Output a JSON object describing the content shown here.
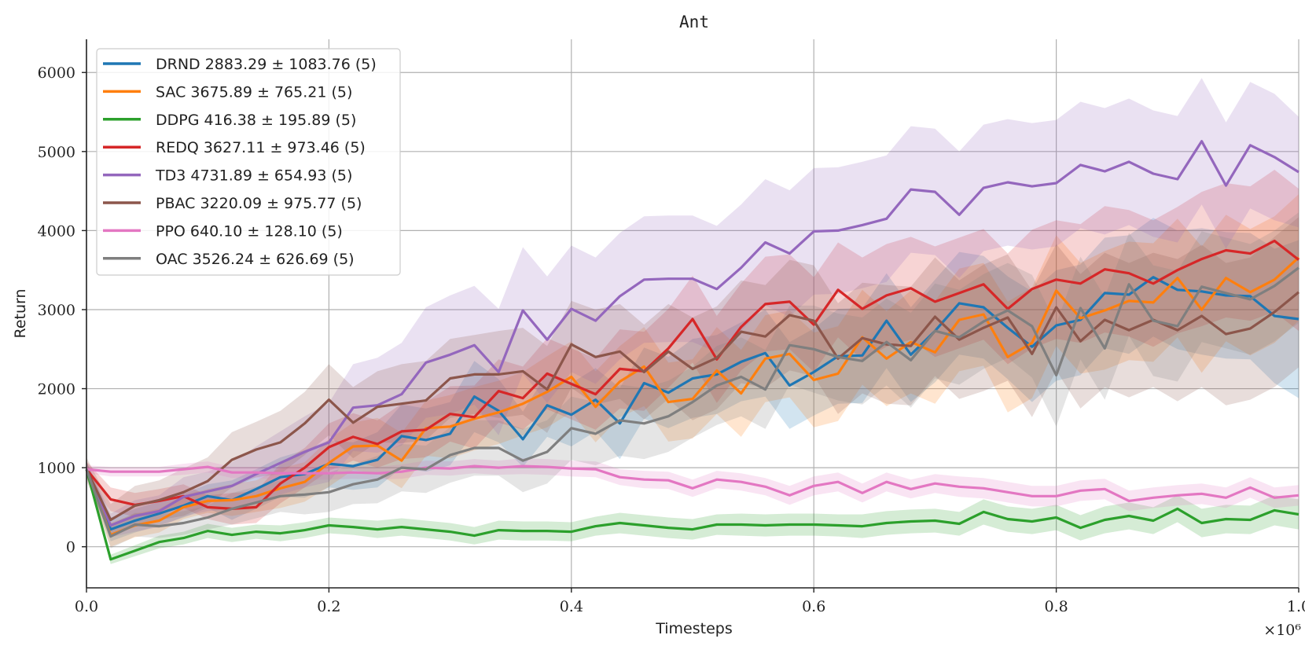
{
  "chart_data": {
    "type": "line",
    "title": "Ant",
    "xlabel": "Timesteps",
    "ylabel": "Return",
    "x_multiplier_label": "×10⁶",
    "xlim": [
      0,
      1.0
    ],
    "ylim": [
      -520,
      6420
    ],
    "xticks": [
      0.0,
      0.2,
      0.4,
      0.6,
      0.8,
      1.0
    ],
    "xtick_labels": [
      "0.0",
      "0.2",
      "0.4",
      "0.6",
      "0.8",
      "1.0"
    ],
    "yticks": [
      0,
      1000,
      2000,
      3000,
      4000,
      5000,
      6000
    ],
    "ytick_labels": [
      "0",
      "1000",
      "2000",
      "3000",
      "4000",
      "5000",
      "6000"
    ],
    "grid": true,
    "legend_position": "top-left",
    "x": [
      0.0,
      0.02,
      0.04,
      0.06,
      0.08,
      0.1,
      0.12,
      0.14,
      0.16,
      0.18,
      0.2,
      0.22,
      0.24,
      0.26,
      0.28,
      0.3,
      0.32,
      0.34,
      0.36,
      0.38,
      0.4,
      0.42,
      0.44,
      0.46,
      0.48,
      0.5,
      0.52,
      0.54,
      0.56,
      0.58,
      0.6,
      0.62,
      0.64,
      0.66,
      0.68,
      0.7,
      0.72,
      0.74,
      0.76,
      0.78,
      0.8,
      0.82,
      0.84,
      0.86,
      0.88,
      0.9,
      0.92,
      0.94,
      0.96,
      0.98,
      1.0
    ],
    "series": [
      {
        "name": "DRND",
        "legend": "DRND 2883.29 ± 1083.76 (5)",
        "color": "#1f77b4",
        "values": [
          980,
          220,
          330,
          420,
          520,
          640,
          590,
          730,
          880,
          920,
          1050,
          1020,
          1100,
          1400,
          1350,
          1430,
          1900,
          1720,
          1360,
          1790,
          1670,
          1860,
          1560,
          2070,
          1950,
          2130,
          2180,
          2340,
          2450,
          2040,
          2210,
          2410,
          2420,
          2860,
          2430,
          2730,
          3080,
          3030,
          2770,
          2530,
          2800,
          2870,
          3210,
          3190,
          3410,
          3250,
          3230,
          3180,
          3170,
          2920,
          2880
        ],
        "band": [
          100,
          150,
          150,
          150,
          150,
          150,
          250,
          250,
          250,
          300,
          300,
          300,
          350,
          400,
          400,
          400,
          450,
          400,
          350,
          400,
          400,
          400,
          450,
          450,
          450,
          500,
          500,
          500,
          550,
          550,
          550,
          600,
          600,
          600,
          600,
          650,
          650,
          650,
          650,
          700,
          700,
          700,
          700,
          750,
          750,
          750,
          800,
          800,
          800,
          850,
          1000
        ]
      },
      {
        "name": "SAC",
        "legend": "SAC 3675.89 ± 765.21 (5)",
        "color": "#ff7f0e",
        "values": [
          980,
          150,
          270,
          330,
          500,
          580,
          590,
          640,
          740,
          820,
          1060,
          1270,
          1280,
          1090,
          1500,
          1520,
          1620,
          1700,
          1810,
          1960,
          2150,
          1770,
          2090,
          2280,
          1830,
          1870,
          2230,
          1940,
          2380,
          2440,
          2110,
          2190,
          2650,
          2380,
          2590,
          2460,
          2870,
          2940,
          2400,
          2580,
          3240,
          2890,
          2990,
          3110,
          3090,
          3400,
          3000,
          3400,
          3220,
          3380,
          3660
        ],
        "band": [
          100,
          150,
          150,
          150,
          150,
          150,
          200,
          200,
          250,
          250,
          300,
          300,
          350,
          350,
          350,
          400,
          400,
          400,
          400,
          450,
          450,
          450,
          450,
          500,
          500,
          500,
          550,
          550,
          550,
          550,
          600,
          600,
          600,
          600,
          650,
          650,
          650,
          650,
          700,
          700,
          700,
          700,
          750,
          750,
          750,
          750,
          800,
          800,
          800,
          800,
          800
        ]
      },
      {
        "name": "DDPG",
        "legend": "DDPG 416.38 ± 195.89 (5)",
        "color": "#2ca02c",
        "values": [
          980,
          -160,
          -50,
          60,
          110,
          200,
          150,
          190,
          170,
          210,
          270,
          250,
          220,
          250,
          220,
          190,
          140,
          210,
          200,
          200,
          190,
          260,
          300,
          270,
          240,
          220,
          280,
          280,
          270,
          280,
          280,
          270,
          260,
          300,
          320,
          330,
          290,
          440,
          350,
          320,
          370,
          240,
          340,
          390,
          330,
          480,
          300,
          350,
          340,
          460,
          410
        ],
        "band": [
          50,
          60,
          70,
          80,
          80,
          90,
          90,
          90,
          100,
          100,
          100,
          100,
          110,
          110,
          110,
          110,
          110,
          120,
          120,
          120,
          120,
          120,
          130,
          130,
          130,
          130,
          130,
          140,
          140,
          140,
          140,
          140,
          150,
          150,
          150,
          150,
          150,
          160,
          160,
          160,
          160,
          160,
          170,
          170,
          170,
          170,
          180,
          180,
          180,
          190,
          190
        ]
      },
      {
        "name": "REDQ",
        "legend": "REDQ 3627.11 ± 973.46 (5)",
        "color": "#d62728",
        "values": [
          980,
          600,
          530,
          580,
          640,
          500,
          480,
          500,
          800,
          1000,
          1260,
          1390,
          1300,
          1460,
          1480,
          1680,
          1640,
          1970,
          1880,
          2190,
          2060,
          1930,
          2250,
          2220,
          2510,
          2880,
          2370,
          2780,
          3070,
          3100,
          2810,
          3250,
          3010,
          3180,
          3270,
          3100,
          3210,
          3320,
          3010,
          3260,
          3380,
          3330,
          3510,
          3460,
          3330,
          3500,
          3640,
          3750,
          3710,
          3870,
          3630
        ],
        "band": [
          100,
          150,
          150,
          150,
          150,
          150,
          200,
          200,
          250,
          250,
          300,
          300,
          300,
          350,
          350,
          350,
          400,
          400,
          400,
          450,
          450,
          450,
          500,
          500,
          500,
          550,
          550,
          550,
          600,
          600,
          600,
          600,
          650,
          650,
          650,
          700,
          700,
          700,
          700,
          750,
          750,
          750,
          800,
          800,
          800,
          800,
          850,
          850,
          850,
          900,
          900
        ]
      },
      {
        "name": "TD3",
        "legend": "TD3 4731.89 ± 654.93 (5)",
        "color": "#9467bd",
        "values": [
          980,
          270,
          390,
          450,
          630,
          700,
          770,
          920,
          1060,
          1200,
          1320,
          1760,
          1790,
          1930,
          2330,
          2430,
          2550,
          2210,
          2990,
          2620,
          3010,
          2860,
          3170,
          3380,
          3390,
          3390,
          3260,
          3530,
          3850,
          3710,
          3990,
          4000,
          4070,
          4150,
          4520,
          4490,
          4200,
          4540,
          4610,
          4560,
          4600,
          4830,
          4750,
          4870,
          4720,
          4650,
          5130,
          4570,
          5080,
          4930,
          4740
        ],
        "band": [
          100,
          150,
          200,
          200,
          250,
          250,
          300,
          350,
          400,
          450,
          500,
          550,
          600,
          650,
          700,
          750,
          750,
          800,
          800,
          800,
          800,
          800,
          800,
          800,
          800,
          800,
          800,
          800,
          800,
          800,
          800,
          800,
          800,
          800,
          800,
          800,
          800,
          800,
          800,
          800,
          800,
          800,
          800,
          800,
          800,
          800,
          800,
          800,
          800,
          800,
          700
        ]
      },
      {
        "name": "PBAC",
        "legend": "PBAC 3220.09 ± 975.77 (5)",
        "color": "#8c564b",
        "values": [
          980,
          340,
          520,
          590,
          690,
          830,
          1100,
          1230,
          1320,
          1560,
          1860,
          1570,
          1770,
          1810,
          1850,
          2130,
          2180,
          2180,
          2220,
          1990,
          2560,
          2400,
          2470,
          2210,
          2470,
          2250,
          2390,
          2720,
          2660,
          2930,
          2860,
          2380,
          2640,
          2560,
          2540,
          2910,
          2620,
          2770,
          2900,
          2440,
          3030,
          2600,
          2870,
          2740,
          2870,
          2740,
          2920,
          2690,
          2760,
          2970,
          3220
        ],
        "band": [
          150,
          200,
          250,
          250,
          300,
          300,
          350,
          350,
          400,
          400,
          450,
          450,
          450,
          500,
          500,
          500,
          500,
          550,
          550,
          550,
          550,
          600,
          600,
          600,
          600,
          650,
          650,
          650,
          650,
          700,
          700,
          700,
          700,
          750,
          750,
          750,
          750,
          800,
          800,
          800,
          800,
          850,
          850,
          850,
          850,
          900,
          900,
          900,
          900,
          950,
          950
        ]
      },
      {
        "name": "PPO",
        "legend": "PPO 640.10 ± 128.10 (5)",
        "color": "#e377c2",
        "values": [
          980,
          950,
          950,
          950,
          980,
          1010,
          940,
          940,
          930,
          930,
          930,
          940,
          930,
          950,
          1000,
          990,
          1020,
          1000,
          1020,
          1010,
          990,
          980,
          880,
          850,
          840,
          740,
          850,
          820,
          760,
          650,
          770,
          820,
          680,
          820,
          730,
          800,
          760,
          740,
          690,
          640,
          640,
          710,
          730,
          580,
          620,
          650,
          670,
          620,
          750,
          620,
          650
        ],
        "band": [
          50,
          60,
          60,
          60,
          70,
          70,
          70,
          70,
          80,
          80,
          80,
          80,
          80,
          90,
          90,
          90,
          90,
          90,
          100,
          100,
          100,
          100,
          100,
          110,
          110,
          110,
          110,
          110,
          110,
          120,
          120,
          120,
          120,
          120,
          120,
          120,
          130,
          130,
          130,
          130,
          130,
          130,
          130,
          130,
          130,
          130,
          130,
          130,
          130,
          130,
          130
        ]
      },
      {
        "name": "OAC",
        "legend": "OAC 3526.24 ± 626.69 (5)",
        "color": "#7f7f7f",
        "values": [
          980,
          130,
          280,
          260,
          300,
          370,
          480,
          560,
          640,
          660,
          690,
          790,
          850,
          1000,
          980,
          1160,
          1250,
          1250,
          1090,
          1200,
          1500,
          1430,
          1600,
          1560,
          1650,
          1830,
          2040,
          2150,
          1990,
          2550,
          2500,
          2400,
          2350,
          2590,
          2360,
          2730,
          2650,
          2850,
          2990,
          2790,
          2170,
          3020,
          2510,
          3320,
          2860,
          2790,
          3290,
          3210,
          3130,
          3300,
          3530
        ],
        "band": [
          100,
          150,
          150,
          150,
          150,
          150,
          200,
          200,
          200,
          250,
          250,
          250,
          300,
          300,
          300,
          350,
          350,
          350,
          400,
          400,
          400,
          400,
          450,
          450,
          450,
          450,
          500,
          500,
          500,
          500,
          550,
          550,
          550,
          550,
          600,
          600,
          600,
          600,
          600,
          650,
          650,
          650,
          650,
          650,
          700,
          700,
          700,
          700,
          700,
          700,
          700
        ]
      }
    ]
  }
}
